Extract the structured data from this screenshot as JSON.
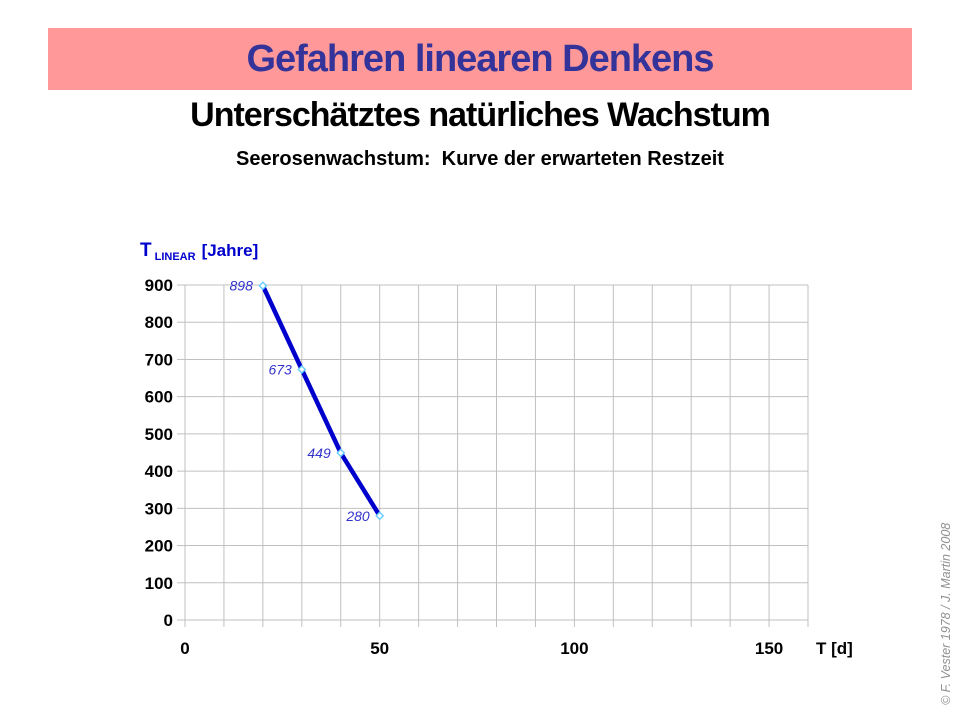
{
  "slide": {
    "banner_title": "Gefahren linearen Denkens",
    "heading": "Unterschätztes natürliches Wachstum",
    "subheading": "Seerosenwachstum:  Kurve der erwarteten Restzeit",
    "credit": "© F. Vester 1978  /  J. Martin 2008",
    "colors": {
      "banner_bg": "#FF9999",
      "banner_text": "#333399"
    }
  },
  "chart_data": {
    "type": "line",
    "title": "Seerosenwachstum: Kurve der erwarteten Restzeit",
    "x": [
      20,
      30,
      40,
      50
    ],
    "values": [
      898,
      673,
      449,
      280
    ],
    "point_labels": [
      "898",
      "673",
      "449",
      "280"
    ],
    "xlabel": "T [d]",
    "ylabel": "T LINEAR [Jahre]",
    "ylabel_parts": {
      "symbol": "T",
      "subscript": "LINEAR",
      "units": "[Jahre]"
    },
    "xlim": [
      0,
      160
    ],
    "ylim": [
      0,
      900
    ],
    "x_grid_step": 10,
    "y_grid_step": 100,
    "x_tick_labels": [
      0,
      50,
      100,
      150
    ],
    "y_tick_labels": [
      0,
      100,
      200,
      300,
      400,
      500,
      600,
      700,
      800,
      900
    ],
    "grid": true,
    "legend_position": "none",
    "colors": {
      "line": "#0000CC",
      "marker_stroke": "#66CCFF",
      "marker_fill": "#FFFFFF",
      "point_label": "#3333CC",
      "grid": "#C0C0C0",
      "tick_text": "#000000"
    }
  }
}
